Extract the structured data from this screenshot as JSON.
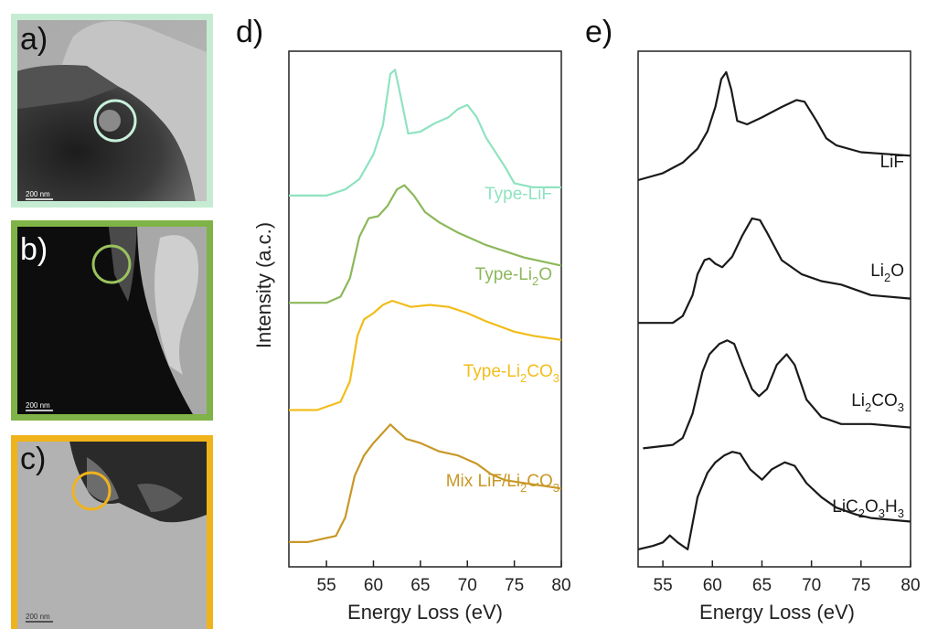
{
  "panels": {
    "a": "a)",
    "b": "b)",
    "c": "c)",
    "d": "d)",
    "e": "e)"
  },
  "micrographs": [
    {
      "label": "a)",
      "border_color": "#c5ecd3",
      "scale_bar": "200 nm"
    },
    {
      "label": "b)",
      "border_color": "#7fb347",
      "scale_bar": "200 nm"
    },
    {
      "label": "c)",
      "border_color": "#f0b31b",
      "scale_bar": "200 nm"
    }
  ],
  "chart_data": [
    {
      "panel": "d)",
      "type": "line",
      "xlabel": "Energy Loss (eV)",
      "ylabel": "Intensity (a.c.)",
      "xlim": [
        51,
        80
      ],
      "xticks": [
        55,
        60,
        65,
        70,
        75,
        80
      ],
      "series": [
        {
          "name": "Type-LiF",
          "name_parts": [
            [
              "Type-LiF",
              false
            ]
          ],
          "color": "#8fe3c0",
          "x": [
            51,
            55,
            57,
            58.5,
            60,
            61,
            61.8,
            62.3,
            62.9,
            63.7,
            65,
            66.5,
            68,
            69,
            70,
            71,
            72,
            74,
            75,
            77,
            80
          ],
          "y": [
            0.6,
            0.6,
            0.615,
            0.64,
            0.7,
            0.77,
            0.895,
            0.905,
            0.84,
            0.75,
            0.755,
            0.775,
            0.79,
            0.81,
            0.82,
            0.79,
            0.74,
            0.67,
            0.63,
            0.62,
            0.62
          ]
        },
        {
          "name": "Type-Li2O",
          "name_parts": [
            [
              "Type-Li",
              false
            ],
            [
              "2",
              true
            ],
            [
              "O",
              false
            ]
          ],
          "color": "#8cb85b",
          "x": [
            51,
            55,
            56.5,
            57.5,
            58.5,
            59.5,
            60.5,
            61.5,
            62.5,
            63.3,
            64.3,
            65.5,
            67,
            69,
            72,
            76,
            80
          ],
          "y": [
            0.34,
            0.34,
            0.355,
            0.4,
            0.5,
            0.545,
            0.55,
            0.575,
            0.615,
            0.625,
            0.6,
            0.56,
            0.535,
            0.51,
            0.48,
            0.45,
            0.43
          ]
        },
        {
          "name": "Type-Li2CO3",
          "name_parts": [
            [
              "Type-Li",
              false
            ],
            [
              "2",
              true
            ],
            [
              "CO",
              false
            ],
            [
              "3",
              true
            ]
          ],
          "color": "#f2bd1a",
          "x": [
            51,
            54,
            56.5,
            57.5,
            58.3,
            59,
            60,
            61,
            62,
            64,
            66,
            68,
            70,
            72,
            75,
            77,
            80
          ],
          "y": [
            0.08,
            0.08,
            0.1,
            0.15,
            0.26,
            0.3,
            0.315,
            0.335,
            0.345,
            0.33,
            0.335,
            0.33,
            0.315,
            0.295,
            0.27,
            0.26,
            0.25
          ]
        },
        {
          "name": "Mix LiF/Li2CO3",
          "name_parts": [
            [
              "Mix LiF/Li",
              false
            ],
            [
              "2",
              true
            ],
            [
              "CO",
              false
            ],
            [
              "3",
              true
            ]
          ],
          "color": "#c89826",
          "x": [
            51,
            53,
            56,
            57,
            58,
            59,
            60,
            61,
            61.8,
            62.5,
            63.5,
            65,
            67,
            69,
            71,
            72.5,
            74,
            77,
            80
          ],
          "y": [
            -0.24,
            -0.24,
            -0.225,
            -0.18,
            -0.08,
            -0.03,
            0.0,
            0.025,
            0.045,
            0.03,
            0.01,
            0.0,
            -0.02,
            -0.03,
            -0.05,
            -0.075,
            -0.09,
            -0.1,
            -0.11
          ]
        }
      ]
    },
    {
      "panel": "e)",
      "type": "line",
      "xlabel": "Energy Loss (eV)",
      "ylabel": "",
      "xlim": [
        52.5,
        80
      ],
      "xticks": [
        55,
        60,
        65,
        70,
        75,
        80
      ],
      "series": [
        {
          "name": "LiF",
          "name_parts": [
            [
              "LiF",
              false
            ]
          ],
          "color": "#1a1a1a",
          "x": [
            52.5,
            55,
            57,
            58.5,
            59.5,
            60.3,
            60.9,
            61.4,
            61.9,
            62.5,
            63.5,
            65,
            67,
            68.5,
            69.3,
            70.5,
            71.5,
            72.5,
            75,
            80
          ],
          "y": [
            0.81,
            0.83,
            0.86,
            0.9,
            0.95,
            1.02,
            1.1,
            1.12,
            1.07,
            0.98,
            0.97,
            0.99,
            1.02,
            1.04,
            1.035,
            0.98,
            0.93,
            0.91,
            0.89,
            0.88
          ]
        },
        {
          "name": "Li2O",
          "name_parts": [
            [
              "Li",
              false
            ],
            [
              "2",
              true
            ],
            [
              "O",
              false
            ]
          ],
          "color": "#1a1a1a",
          "x": [
            52.5,
            56,
            57,
            58,
            58.5,
            59.2,
            59.7,
            60.3,
            61,
            62,
            63,
            64,
            64.8,
            65.5,
            67,
            69,
            71,
            73,
            76,
            80
          ],
          "y": [
            0.4,
            0.4,
            0.42,
            0.48,
            0.54,
            0.58,
            0.585,
            0.57,
            0.56,
            0.59,
            0.65,
            0.7,
            0.695,
            0.66,
            0.58,
            0.54,
            0.52,
            0.51,
            0.48,
            0.47
          ]
        },
        {
          "name": "Li2CO3",
          "name_parts": [
            [
              "Li",
              false
            ],
            [
              "2",
              true
            ],
            [
              "CO",
              false
            ],
            [
              "3",
              true
            ]
          ],
          "color": "#1a1a1a",
          "x": [
            53,
            56,
            57,
            58,
            59,
            59.7,
            60.7,
            61.5,
            62.2,
            63,
            64,
            64.7,
            65.5,
            66.5,
            67.5,
            68.3,
            69.5,
            71,
            73,
            76,
            80
          ],
          "y": [
            0.04,
            0.05,
            0.07,
            0.14,
            0.26,
            0.31,
            0.34,
            0.35,
            0.34,
            0.28,
            0.21,
            0.19,
            0.21,
            0.28,
            0.31,
            0.28,
            0.18,
            0.13,
            0.11,
            0.11,
            0.1
          ]
        },
        {
          "name": "LiC2O3H3",
          "name_parts": [
            [
              "LiC",
              false
            ],
            [
              "2",
              true
            ],
            [
              "O",
              false
            ],
            [
              "3",
              true
            ],
            [
              "H",
              false
            ],
            [
              "3",
              true
            ]
          ],
          "color": "#1a1a1a",
          "x": [
            52.5,
            54,
            55,
            55.7,
            56.5,
            57.5,
            58.5,
            59.5,
            60.3,
            61.2,
            62,
            62.8,
            63.8,
            65,
            66,
            67.3,
            68.3,
            69.5,
            71,
            72.5,
            74.5,
            76,
            80
          ],
          "y": [
            -0.25,
            -0.24,
            -0.23,
            -0.21,
            -0.23,
            -0.25,
            -0.1,
            -0.03,
            0.0,
            0.02,
            0.03,
            0.025,
            -0.02,
            -0.05,
            -0.02,
            0.0,
            -0.01,
            -0.06,
            -0.1,
            -0.13,
            -0.15,
            -0.16,
            -0.17
          ]
        }
      ]
    }
  ]
}
